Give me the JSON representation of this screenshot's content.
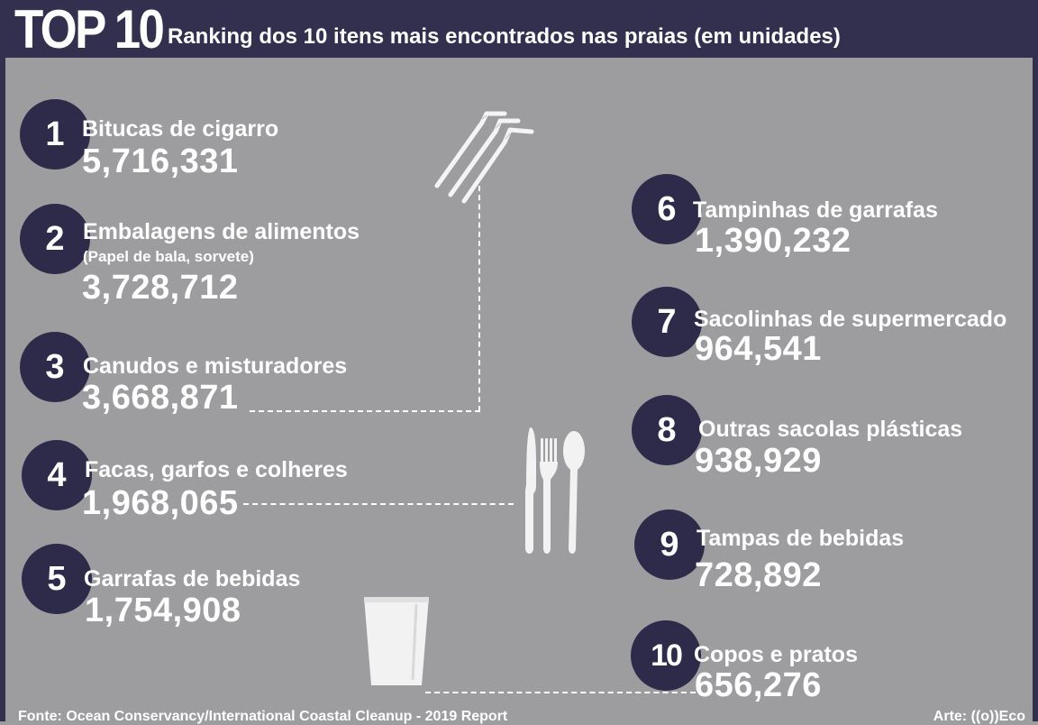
{
  "header": {
    "badge": "TOP 10",
    "subtitle": "Ranking dos 10 itens mais encontrados nas praias (em unidades)"
  },
  "chart_data": {
    "type": "table",
    "title": "TOP 10",
    "subtitle": "Ranking dos 10 itens mais encontrados nas praias (em unidades)",
    "items": [
      {
        "rank": "1",
        "label": "Bitucas de cigarro",
        "note": "",
        "value": 5716331,
        "value_text": "5,716,331"
      },
      {
        "rank": "2",
        "label": "Embalagens de alimentos",
        "note": "(Papel de bala, sorvete)",
        "value": 3728712,
        "value_text": "3,728,712"
      },
      {
        "rank": "3",
        "label": "Canudos e misturadores",
        "note": "",
        "value": 3668871,
        "value_text": "3,668,871"
      },
      {
        "rank": "4",
        "label": "Facas, garfos e colheres",
        "note": "",
        "value": 1968065,
        "value_text": "1,968,065"
      },
      {
        "rank": "5",
        "label": "Garrafas de bebidas",
        "note": "",
        "value": 1754908,
        "value_text": "1,754,908"
      },
      {
        "rank": "6",
        "label": "Tampinhas de garrafas",
        "note": "",
        "value": 1390232,
        "value_text": "1,390,232"
      },
      {
        "rank": "7",
        "label": "Sacolinhas de supermercado",
        "note": "",
        "value": 964541,
        "value_text": "964,541"
      },
      {
        "rank": "8",
        "label": "Outras sacolas plásticas",
        "note": "",
        "value": 938929,
        "value_text": "938,929"
      },
      {
        "rank": "9",
        "label": "Tampas de bebidas",
        "note": "",
        "value": 728892,
        "value_text": "728,892"
      },
      {
        "rank": "10",
        "label": "Copos e pratos",
        "note": "",
        "value": 656276,
        "value_text": "656,276"
      }
    ]
  },
  "icons": [
    "straws-icon",
    "cutlery-icon",
    "cup-icon"
  ],
  "colors": {
    "background": "#9d9d9f",
    "header": "#33304f",
    "badge": "#2d2a4a",
    "text": "#ffffff"
  },
  "footer": {
    "source": "Fonte: Ocean Conservancy/International Coastal Cleanup - 2019 Report",
    "credit": "Arte: ((o))Eco"
  }
}
